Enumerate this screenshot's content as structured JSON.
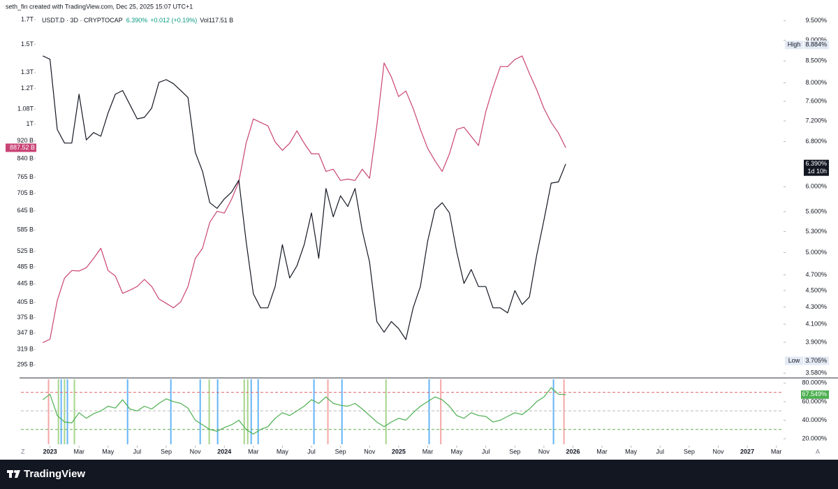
{
  "header": "seth_fin created with TradingView.com, Dec 25, 2025 15:07 UTC+1",
  "legend": {
    "symbol": "USDT.D · 3D · CRYPTOCAP",
    "price": "6.390%",
    "change": "+0.012 (+0.19%)",
    "vol_label": "Vol",
    "vol": "117.51 B"
  },
  "brand": "TradingView",
  "axis_buttons": [
    "Z",
    "A"
  ],
  "chart_data": [
    {
      "type": "line",
      "log_scale": true,
      "x": [
        -0.5,
        0,
        0.5,
        1,
        1.5,
        2,
        2.5,
        3,
        3.5,
        4,
        4.5,
        5,
        5.5,
        6,
        6.5,
        7,
        7.5,
        8,
        8.5,
        9,
        9.5,
        10,
        10.5,
        11,
        11.5,
        12,
        12.5,
        13,
        13.5,
        14,
        14.5,
        15,
        15.5,
        16,
        16.5,
        17,
        17.5,
        18,
        18.5,
        19,
        19.5,
        20,
        20.5,
        21,
        21.5,
        22,
        22.5,
        23,
        23.5,
        24,
        24.5,
        25,
        25.5,
        26,
        26.5,
        27,
        27.5,
        28,
        28.5,
        29,
        29.5,
        30,
        30.5,
        31,
        31.5,
        32,
        32.5,
        33,
        33.5,
        34,
        34.5,
        35,
        35.5
      ],
      "xlim": [
        -2,
        50.4
      ],
      "xticks": [
        {
          "value": 0,
          "label": "2023"
        },
        {
          "value": 2,
          "label": "Mar"
        },
        {
          "value": 4,
          "label": "May"
        },
        {
          "value": 6,
          "label": "Jul"
        },
        {
          "value": 8,
          "label": "Sep"
        },
        {
          "value": 10,
          "label": "Nov"
        },
        {
          "value": 12,
          "label": "2024"
        },
        {
          "value": 14,
          "label": "Mar"
        },
        {
          "value": 16,
          "label": "May"
        },
        {
          "value": 18,
          "label": "Jul"
        },
        {
          "value": 20,
          "label": "Sep"
        },
        {
          "value": 22,
          "label": "Nov"
        },
        {
          "value": 24,
          "label": "2025"
        },
        {
          "value": 26,
          "label": "Mar"
        },
        {
          "value": 28,
          "label": "May"
        },
        {
          "value": 30,
          "label": "Jul"
        },
        {
          "value": 32,
          "label": "Sep"
        },
        {
          "value": 34,
          "label": "Nov"
        },
        {
          "value": 36,
          "label": "2026"
        },
        {
          "value": 38,
          "label": "Mar"
        },
        {
          "value": 40,
          "label": "May"
        },
        {
          "value": 42,
          "label": "Jul"
        },
        {
          "value": 44,
          "label": "Sep"
        },
        {
          "value": 46,
          "label": "Nov"
        },
        {
          "value": 48,
          "label": "2027"
        },
        {
          "value": 50,
          "label": "Mar"
        }
      ],
      "ylim": [
        277,
        1750
      ],
      "yticks": [
        {
          "value": 1700,
          "label": "1.7T"
        },
        {
          "value": 1500,
          "label": "1.5T"
        },
        {
          "value": 1300,
          "label": "1.3T"
        },
        {
          "value": 1200,
          "label": "1.2T"
        },
        {
          "value": 1080,
          "label": "1.08T"
        },
        {
          "value": 1000,
          "label": "1T"
        },
        {
          "value": 920,
          "label": "920 B"
        },
        {
          "value": 840,
          "label": "840 B"
        },
        {
          "value": 765,
          "label": "765 B"
        },
        {
          "value": 705,
          "label": "705 B"
        },
        {
          "value": 645,
          "label": "645 B"
        },
        {
          "value": 585,
          "label": "585 B"
        },
        {
          "value": 525,
          "label": "525 B"
        },
        {
          "value": 485,
          "label": "485 B"
        },
        {
          "value": 445,
          "label": "445 B"
        },
        {
          "value": 405,
          "label": "405 B"
        },
        {
          "value": 375,
          "label": "375 B"
        },
        {
          "value": 347,
          "label": "347 B"
        },
        {
          "value": 319,
          "label": "319 B"
        },
        {
          "value": 295,
          "label": "295 B"
        }
      ],
      "y2lim": [
        3.54,
        9.68
      ],
      "y2ticks": [
        {
          "value": 9.5,
          "label": "9.500%"
        },
        {
          "value": 9.0,
          "label": "9.000%"
        },
        {
          "value": 8.5,
          "label": "8.500%"
        },
        {
          "value": 8.0,
          "label": "8.000%"
        },
        {
          "value": 7.6,
          "label": "7.600%"
        },
        {
          "value": 7.2,
          "label": "7.200%"
        },
        {
          "value": 6.8,
          "label": "6.800%"
        },
        {
          "value": 6.0,
          "label": "6.000%"
        },
        {
          "value": 5.6,
          "label": "5.600%"
        },
        {
          "value": 5.3,
          "label": "5.300%"
        },
        {
          "value": 5.0,
          "label": "5.000%"
        },
        {
          "value": 4.7,
          "label": "4.700%"
        },
        {
          "value": 4.5,
          "label": "4.500%"
        },
        {
          "value": 4.3,
          "label": "4.300%"
        },
        {
          "value": 4.1,
          "label": "4.100%"
        },
        {
          "value": 3.9,
          "label": "3.900%"
        },
        {
          "value": 3.58,
          "label": "3.580%"
        }
      ],
      "series": [
        {
          "name": "CRYPTOCAP",
          "color": "#c94474",
          "last_label": "887.52 B",
          "values": [
            330,
            336,
            409,
            458,
            476,
            475,
            483,
            506,
            533,
            476,
            463,
            424,
            431,
            439,
            455,
            439,
            412,
            403,
            394,
            406,
            439,
            506,
            533,
            608,
            643,
            637,
            683,
            747,
            908,
            1027,
            1009,
            992,
            914,
            876,
            908,
            967,
            908,
            861,
            861,
            787,
            796,
            752,
            757,
            752,
            796,
            760,
            992,
            1365,
            1271,
            1151,
            1184,
            1084,
            974,
            885,
            831,
            787,
            861,
            974,
            985,
            940,
            898,
            1065,
            1205,
            1340,
            1340,
            1389,
            1414,
            1294,
            1192,
            1084,
            1009,
            957,
            887.52
          ]
        },
        {
          "name": "USDT.D",
          "color": "#131722",
          "axis": "y2",
          "last_label": "6.390%",
          "countdown": "1d 10h",
          "values": [
            8.62,
            8.54,
            7.03,
            6.77,
            6.77,
            7.75,
            6.83,
            6.97,
            6.9,
            7.36,
            7.75,
            7.83,
            7.53,
            7.24,
            7.27,
            7.46,
            8.01,
            8.07,
            7.98,
            7.83,
            7.68,
            6.6,
            6.26,
            5.74,
            5.65,
            5.8,
            5.91,
            6.11,
            5.16,
            4.46,
            4.29,
            4.29,
            4.55,
            5.11,
            4.66,
            4.82,
            5.11,
            5.58,
            4.92,
            5.97,
            5.52,
            5.85,
            5.68,
            5.97,
            5.31,
            4.87,
            4.13,
            4.01,
            4.13,
            4.05,
            3.93,
            4.29,
            4.55,
            5.16,
            5.63,
            5.74,
            5.58,
            5.01,
            4.59,
            4.77,
            4.55,
            4.55,
            4.29,
            4.29,
            4.23,
            4.5,
            4.33,
            4.42,
            4.96,
            5.47,
            6.06,
            6.08,
            6.39
          ]
        }
      ],
      "high": {
        "tag": "High",
        "value": 8.884,
        "label": "8.884%"
      },
      "low": {
        "tag": "Low",
        "value": 3.705,
        "label": "3.705%"
      }
    },
    {
      "type": "indicator",
      "ylim": [
        14,
        84
      ],
      "yticks": [
        {
          "value": 80,
          "label": "80.000%"
        },
        {
          "value": 60,
          "label": "60.000%"
        },
        {
          "value": 40,
          "label": "40.000%"
        },
        {
          "value": 20,
          "label": "20.000%"
        }
      ],
      "levels": [
        {
          "value": 70,
          "color": "#e06666"
        },
        {
          "value": 50,
          "color": "#bbbbbb"
        },
        {
          "value": 30,
          "color": "#66aa55"
        }
      ],
      "series": [
        {
          "color": "#4caf50",
          "last_label": "67.549%",
          "values": [
            62,
            68,
            45,
            38,
            37,
            48,
            42,
            47,
            50,
            55,
            53,
            62,
            52,
            50,
            55,
            52,
            58,
            63,
            60,
            58,
            53,
            40,
            35,
            30,
            28,
            32,
            35,
            40,
            30,
            25,
            30,
            33,
            42,
            48,
            45,
            50,
            55,
            62,
            58,
            65,
            58,
            56,
            55,
            58,
            52,
            45,
            38,
            33,
            38,
            42,
            40,
            48,
            55,
            60,
            65,
            62,
            55,
            45,
            42,
            48,
            45,
            44,
            38,
            40,
            44,
            48,
            46,
            52,
            60,
            65,
            75,
            68,
            67.549
          ]
        }
      ],
      "signals": [
        {
          "x": -0.1,
          "color": "#f4a6a6"
        },
        {
          "x": 0.58,
          "color": "#a5d48a"
        },
        {
          "x": 0.77,
          "color": "#64b5f6"
        },
        {
          "x": 1.0,
          "color": "#a5d48a"
        },
        {
          "x": 1.2,
          "color": "#64b5f6"
        },
        {
          "x": 1.68,
          "color": "#a5d48a"
        },
        {
          "x": 5.34,
          "color": "#64b5f6"
        },
        {
          "x": 8.32,
          "color": "#64b5f6"
        },
        {
          "x": 10.34,
          "color": "#64b5f6"
        },
        {
          "x": 10.96,
          "color": "#a5d48a"
        },
        {
          "x": 11.54,
          "color": "#64b5f6"
        },
        {
          "x": 13.37,
          "color": "#a5d48a"
        },
        {
          "x": 13.61,
          "color": "#a5d48a"
        },
        {
          "x": 13.85,
          "color": "#64b5f6"
        },
        {
          "x": 14.33,
          "color": "#64b5f6"
        },
        {
          "x": 18.17,
          "color": "#64b5f6"
        },
        {
          "x": 19.13,
          "color": "#f4a6a6"
        },
        {
          "x": 20.1,
          "color": "#64b5f6"
        },
        {
          "x": 23.13,
          "color": "#a5d48a"
        },
        {
          "x": 26.1,
          "color": "#64b5f6"
        },
        {
          "x": 26.9,
          "color": "#f4a6a6"
        },
        {
          "x": 34.66,
          "color": "#64b5f6"
        },
        {
          "x": 35.38,
          "color": "#f4a6a6"
        }
      ]
    }
  ]
}
